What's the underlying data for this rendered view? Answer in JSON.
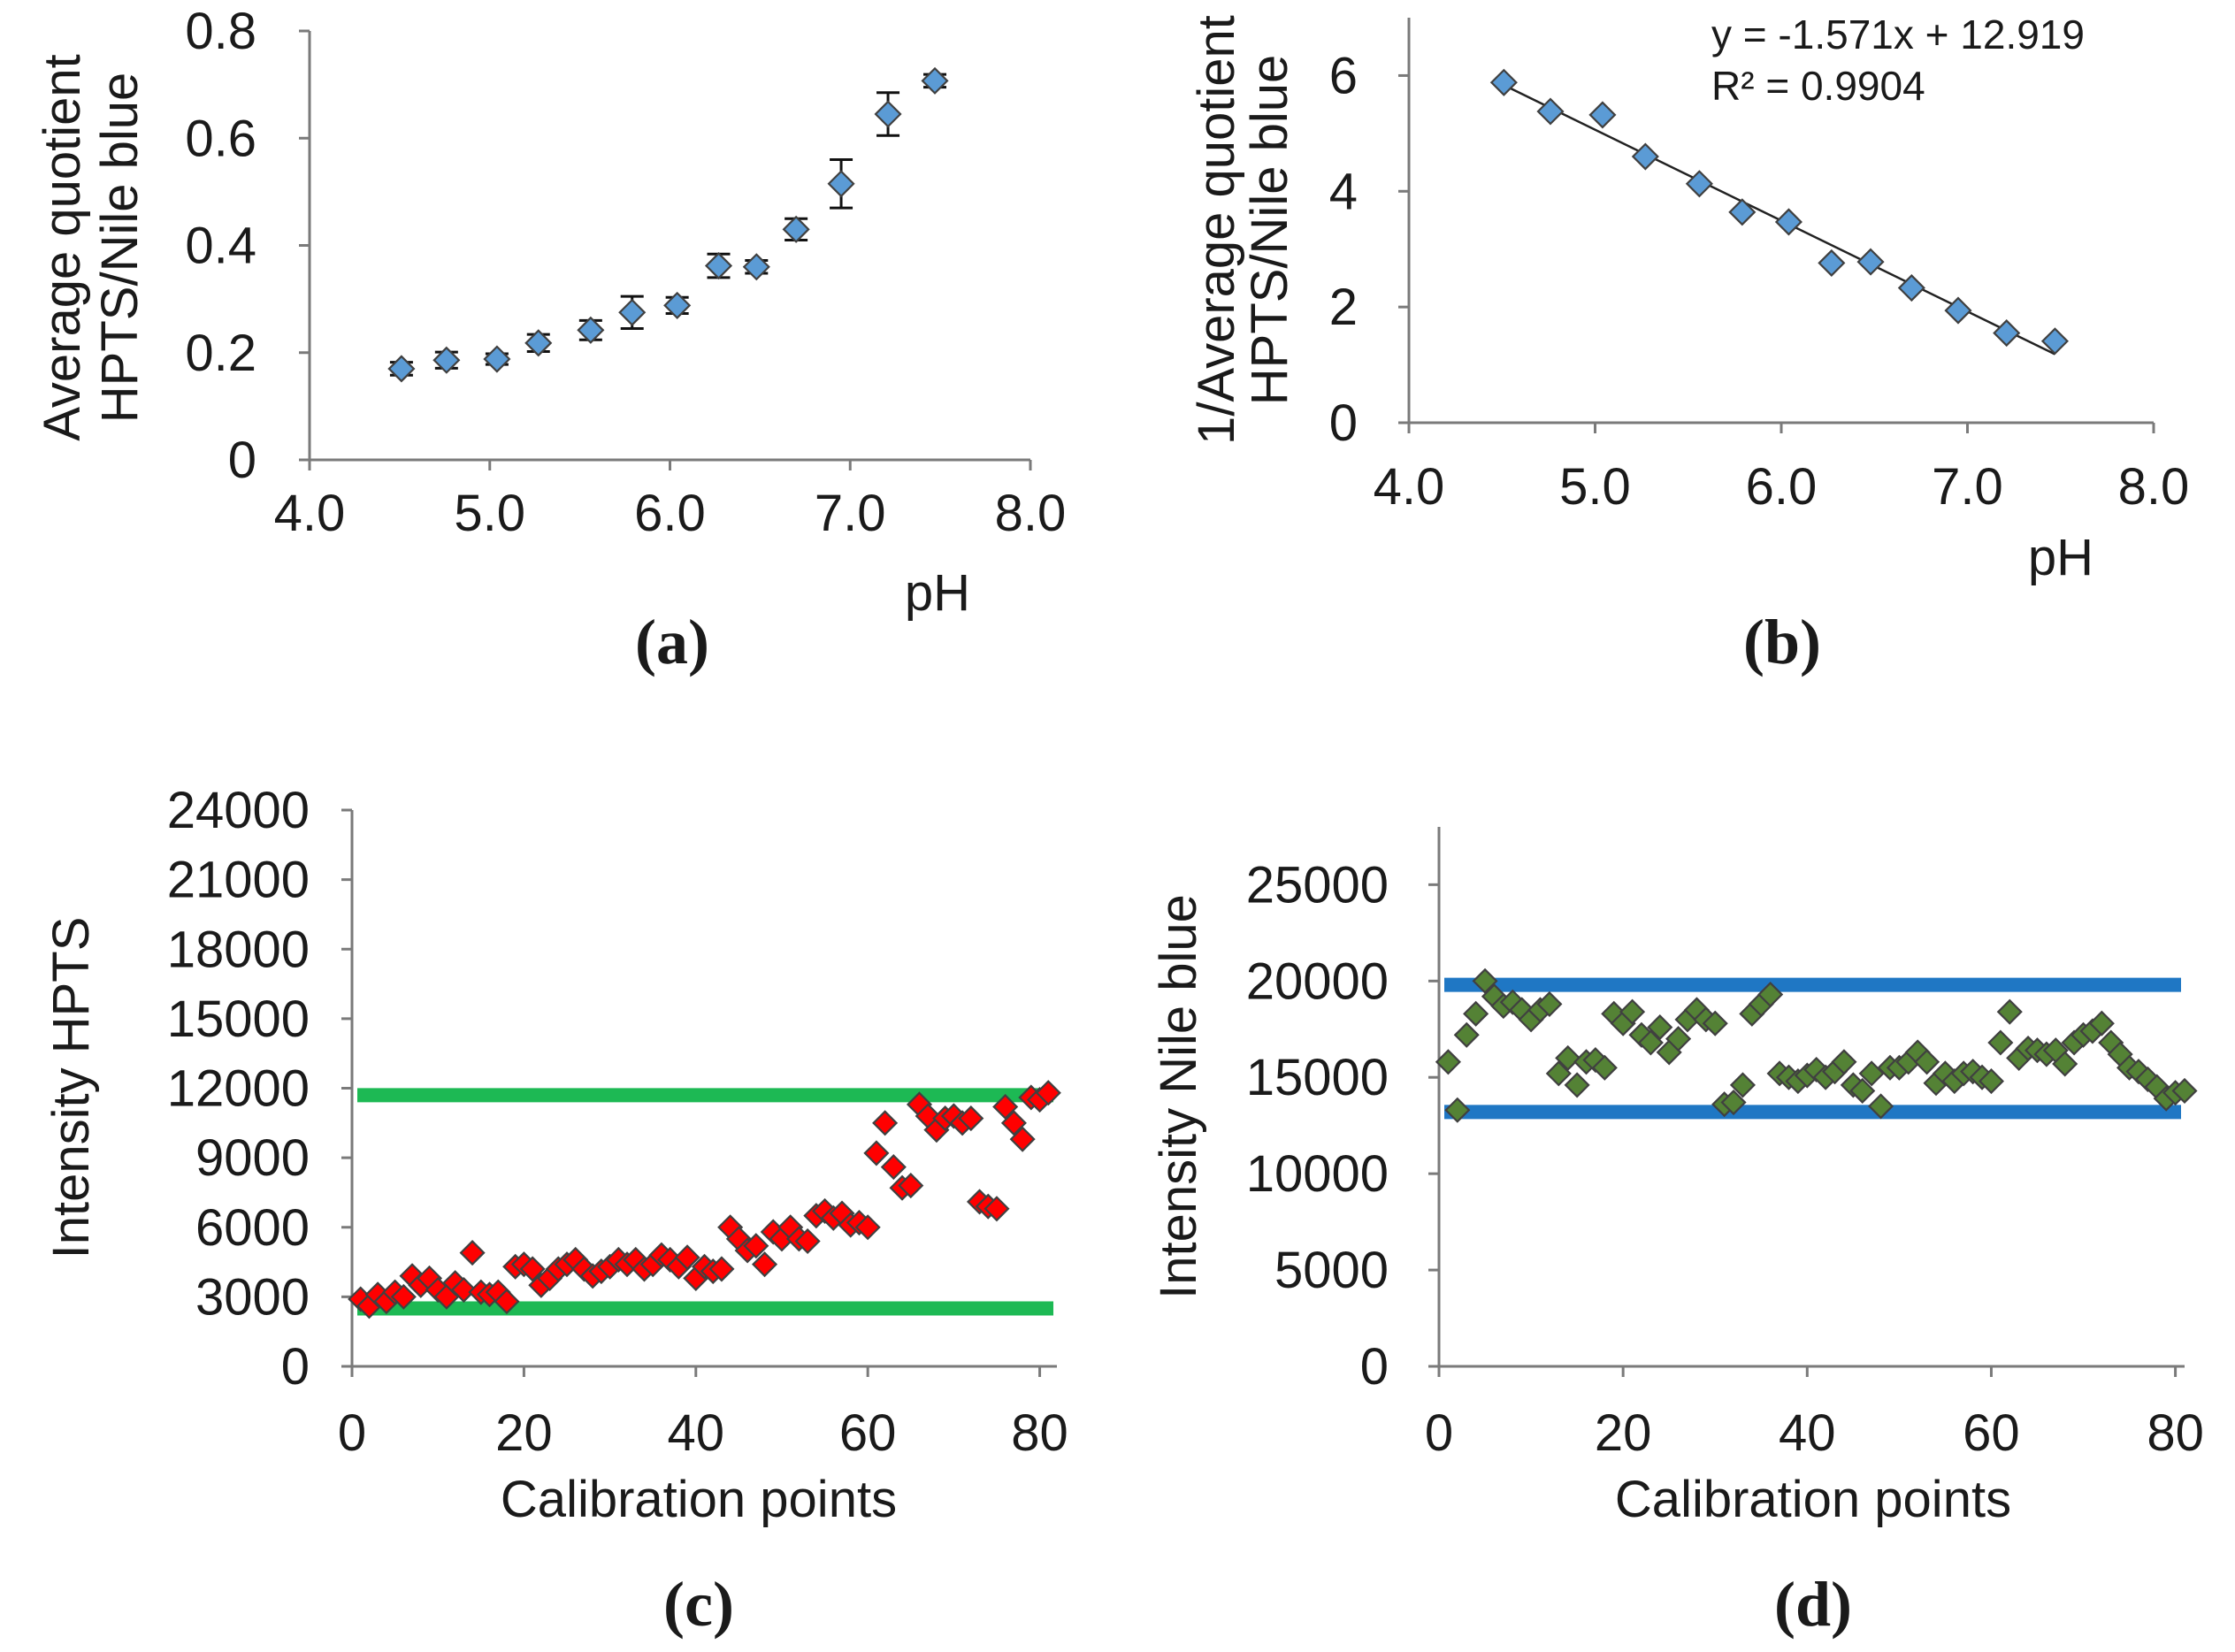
{
  "chart_data": [
    {
      "id": "a",
      "type": "scatter",
      "panel_label": "(a)",
      "title": "",
      "xlabel": "pH",
      "ylabel_lines": [
        "Average  quotient",
        "HPTS/Nile blue"
      ],
      "xlim": [
        4.0,
        8.0
      ],
      "ylim": [
        0,
        0.8
      ],
      "xticks": [
        4.0,
        5.0,
        6.0,
        7.0,
        8.0
      ],
      "xtick_labels": [
        "4.0",
        "5.0",
        "6.0",
        "7.0",
        "8.0"
      ],
      "yticks": [
        0,
        0.2,
        0.4,
        0.6,
        0.8
      ],
      "ytick_labels": [
        "0",
        "0.2",
        "0.4",
        "0.6",
        "0.8"
      ],
      "marker_color": "#5b9bd5",
      "marker": "diamond",
      "error_bars": true,
      "x": [
        4.51,
        4.76,
        5.04,
        5.27,
        5.56,
        5.79,
        6.04,
        6.27,
        6.48,
        6.7,
        6.95,
        7.21,
        7.47
      ],
      "y": [
        0.17,
        0.186,
        0.188,
        0.218,
        0.242,
        0.275,
        0.288,
        0.362,
        0.36,
        0.43,
        0.515,
        0.645,
        0.707
      ],
      "err": [
        0.012,
        0.015,
        0.01,
        0.016,
        0.018,
        0.03,
        0.015,
        0.022,
        0.012,
        0.02,
        0.045,
        0.04,
        0.012
      ]
    },
    {
      "id": "b",
      "type": "scatter",
      "panel_label": "(b)",
      "title": "",
      "xlabel": "pH",
      "ylabel_lines": [
        "1/Average  quotient",
        "HPTS/Nile  blue"
      ],
      "xlim": [
        4.0,
        8.0
      ],
      "ylim": [
        0,
        7
      ],
      "xticks": [
        4.0,
        5.0,
        6.0,
        7.0,
        8.0
      ],
      "xtick_labels": [
        "4.0",
        "5.0",
        "6.0",
        "7.0",
        "8.0"
      ],
      "yticks": [
        0,
        2,
        4,
        6
      ],
      "ytick_labels": [
        "0",
        "2",
        "4",
        "6"
      ],
      "marker_color": "#5b9bd5",
      "marker": "diamond",
      "x": [
        4.51,
        4.76,
        5.04,
        5.27,
        5.56,
        5.79,
        6.04,
        6.27,
        6.48,
        6.7,
        6.95,
        7.21,
        7.47
      ],
      "y": [
        5.88,
        5.38,
        5.32,
        4.6,
        4.13,
        3.64,
        3.47,
        2.76,
        2.78,
        2.33,
        1.94,
        1.55,
        1.41
      ],
      "trendline": {
        "slope": -1.571,
        "intercept": 12.919,
        "x_range": [
          4.51,
          7.47
        ]
      },
      "equation_lines": [
        "y = -1.571x + 12.919",
        "R² = 0.9904"
      ]
    },
    {
      "id": "c",
      "type": "scatter",
      "panel_label": "(c)",
      "title": "",
      "xlabel": "Calibration  points",
      "ylabel_lines": [
        "Intensity HPTS"
      ],
      "xlim": [
        0,
        82
      ],
      "ylim": [
        0,
        24000
      ],
      "xticks": [
        0,
        20,
        40,
        60,
        80
      ],
      "xtick_labels": [
        "0",
        "20",
        "40",
        "60",
        "80"
      ],
      "yticks": [
        0,
        3000,
        6000,
        9000,
        12000,
        15000,
        18000,
        21000,
        24000
      ],
      "ytick_labels": [
        "0",
        "3000",
        "6000",
        "9000",
        "12000",
        "15000",
        "18000",
        "21000",
        "24000"
      ],
      "marker_color": "#ff0000",
      "marker": "diamond",
      "reference_lines": [
        {
          "y": 11700,
          "color": "#1db954",
          "x_range": [
            0,
            82
          ]
        },
        {
          "y": 2500,
          "color": "#1db954",
          "x_range": [
            0,
            82
          ]
        }
      ],
      "x": [
        1,
        2,
        3,
        4,
        5,
        6,
        7,
        8,
        9,
        10,
        11,
        12,
        13,
        14,
        15,
        16,
        17,
        18,
        19,
        20,
        21,
        22,
        23,
        24,
        25,
        26,
        27,
        28,
        29,
        30,
        31,
        32,
        33,
        34,
        35,
        36,
        37,
        38,
        39,
        40,
        41,
        42,
        43,
        44,
        45,
        46,
        47,
        48,
        49,
        50,
        51,
        52,
        53,
        54,
        55,
        56,
        57,
        58,
        59,
        60,
        61,
        62,
        63,
        64,
        65,
        66,
        67,
        68,
        69,
        70,
        71,
        72,
        73,
        74,
        75,
        76,
        77,
        78,
        79,
        80,
        81
      ],
      "y": [
        2900,
        2600,
        3100,
        2800,
        3200,
        3000,
        3900,
        3500,
        3800,
        3300,
        3000,
        3600,
        3300,
        4900,
        3200,
        3100,
        3200,
        2800,
        4300,
        4400,
        4200,
        3500,
        3800,
        4200,
        4400,
        4600,
        4200,
        3900,
        4100,
        4300,
        4600,
        4400,
        4600,
        4200,
        4400,
        4800,
        4600,
        4300,
        4700,
        3800,
        4300,
        4100,
        4200,
        6000,
        5500,
        5000,
        5200,
        4400,
        5800,
        5500,
        6000,
        5500,
        5400,
        6500,
        6700,
        6400,
        6600,
        6100,
        6200,
        6000,
        9200,
        10500,
        8600,
        7700,
        7800,
        11300,
        10800,
        10200,
        10700,
        10800,
        10500,
        10700,
        7100,
        6900,
        6800,
        11200,
        10500,
        9800,
        11600,
        11500,
        11800
      ]
    },
    {
      "id": "d",
      "type": "scatter",
      "panel_label": "(d)",
      "title": "",
      "xlabel": "Calibration  points",
      "ylabel_lines": [
        "Intensity Nile blue"
      ],
      "xlim": [
        0,
        81
      ],
      "ylim": [
        0,
        28000
      ],
      "xticks": [
        0,
        20,
        40,
        60,
        80
      ],
      "xtick_labels": [
        "0",
        "20",
        "40",
        "60",
        "80"
      ],
      "yticks": [
        0,
        5000,
        10000,
        15000,
        20000,
        25000
      ],
      "ytick_labels": [
        "0",
        "5000",
        "10000",
        "15000",
        "20000",
        "25000"
      ],
      "marker_color": "#548235",
      "marker": "diamond",
      "reference_lines": [
        {
          "y": 19800,
          "color": "#1f77c4",
          "x_range": [
            0,
            81
          ]
        },
        {
          "y": 13200,
          "color": "#1f77c4",
          "x_range": [
            0,
            81
          ]
        }
      ],
      "x": [
        1,
        2,
        3,
        4,
        5,
        6,
        7,
        8,
        9,
        10,
        11,
        12,
        13,
        14,
        15,
        16,
        17,
        18,
        19,
        20,
        21,
        22,
        23,
        24,
        25,
        26,
        27,
        28,
        29,
        30,
        31,
        32,
        33,
        34,
        35,
        36,
        37,
        38,
        39,
        40,
        41,
        42,
        43,
        44,
        45,
        46,
        47,
        48,
        49,
        50,
        51,
        52,
        53,
        54,
        55,
        56,
        57,
        58,
        59,
        60,
        61,
        62,
        63,
        64,
        65,
        66,
        67,
        68,
        69,
        70,
        71,
        72,
        73,
        74,
        75,
        76,
        77,
        78,
        79,
        80,
        81
      ],
      "y": [
        15800,
        13300,
        17200,
        18300,
        20000,
        19200,
        18700,
        18900,
        18500,
        18000,
        18500,
        18800,
        15200,
        16000,
        14600,
        15800,
        15900,
        15500,
        18300,
        17800,
        18400,
        17200,
        16800,
        17600,
        16300,
        17000,
        18000,
        18500,
        18000,
        17800,
        13600,
        13700,
        14600,
        18300,
        18800,
        19300,
        15200,
        15000,
        14800,
        15100,
        15400,
        15000,
        15300,
        15800,
        14600,
        14300,
        15200,
        13500,
        15500,
        15500,
        15800,
        16300,
        15800,
        14700,
        15200,
        14800,
        15200,
        15300,
        15000,
        14800,
        16800,
        18400,
        16000,
        16500,
        16400,
        16200,
        16400,
        15700,
        16800,
        17200,
        17400,
        17800,
        16800,
        16200,
        15500,
        15300,
        14900,
        14500,
        13900,
        14200,
        14300
      ]
    }
  ]
}
